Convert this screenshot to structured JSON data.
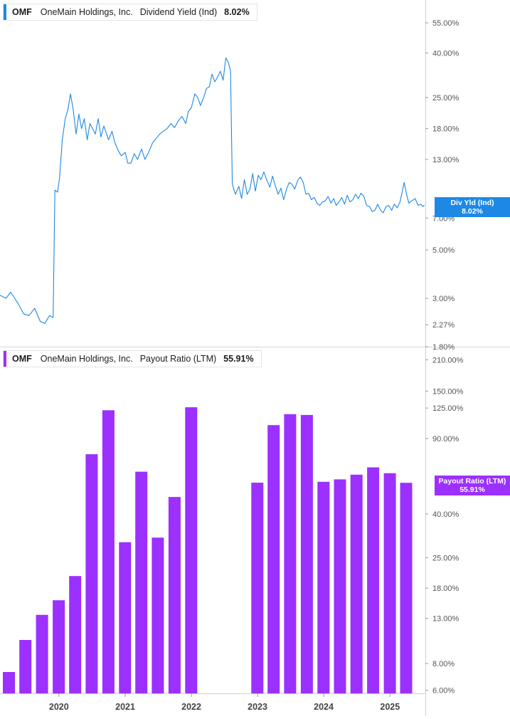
{
  "colors": {
    "yield_line": "#1e88e5",
    "payout_bar": "#9b30ff",
    "grid": "#e6e6e6",
    "axis_text": "#555555"
  },
  "top_panel": {
    "legend": {
      "ticker": "OMF",
      "company": "OneMain Holdings, Inc.",
      "metric": "Dividend Yield (Ind)",
      "value": "8.02%"
    },
    "tag": {
      "label": "Div Yld (Ind)",
      "value": "8.02%"
    },
    "y_ticks": [
      "55.00%",
      "40.00%",
      "25.00%",
      "18.00%",
      "13.00%",
      "7.00%",
      "5.00%",
      "3.00%",
      "2.27%",
      "1.80%"
    ]
  },
  "bottom_panel": {
    "legend": {
      "ticker": "OMF",
      "company": "OneMain Holdings, Inc.",
      "metric": "Payout Ratio (LTM)",
      "value": "55.91%"
    },
    "tag": {
      "label": "Payout Ratio (LTM)",
      "value": "55.91%"
    },
    "y_ticks": [
      "210.00%",
      "150.00%",
      "125.00%",
      "90.00%",
      "40.00%",
      "25.00%",
      "18.00%",
      "13.00%",
      "8.00%",
      "6.00%"
    ]
  },
  "x_axis": {
    "ticks": [
      "2020",
      "2021",
      "2022",
      "2023",
      "2024",
      "2025"
    ]
  },
  "chart_data": [
    {
      "type": "line",
      "title": "OMF OneMain Holdings, Inc. Dividend Yield (Ind)",
      "y_scale": "log",
      "ylim": [
        1.8,
        70
      ],
      "xlim": [
        "2019-02-10",
        "2025-07-15"
      ],
      "series": [
        {
          "name": "Dividend Yield (Ind)",
          "points": [
            [
              "2019-02-10",
              3.1
            ],
            [
              "2019-03-15",
              3.0
            ],
            [
              "2019-04-10",
              3.2
            ],
            [
              "2019-05-20",
              2.85
            ],
            [
              "2019-06-20",
              2.55
            ],
            [
              "2019-07-20",
              2.5
            ],
            [
              "2019-08-20",
              2.7
            ],
            [
              "2019-09-20",
              2.35
            ],
            [
              "2019-10-15",
              2.3
            ],
            [
              "2019-11-10",
              2.5
            ],
            [
              "2019-11-30",
              2.45
            ],
            [
              "2019-12-10",
              9.4
            ],
            [
              "2019-12-25",
              9.2
            ],
            [
              "2020-01-05",
              10.8
            ],
            [
              "2020-01-20",
              16.0
            ],
            [
              "2020-02-05",
              20.0
            ],
            [
              "2020-02-20",
              22.0
            ],
            [
              "2020-03-05",
              26.0
            ],
            [
              "2020-03-20",
              22.0
            ],
            [
              "2020-04-05",
              17.0
            ],
            [
              "2020-04-20",
              21.0
            ],
            [
              "2020-05-05",
              18.0
            ],
            [
              "2020-05-20",
              20.0
            ],
            [
              "2020-06-05",
              16.0
            ],
            [
              "2020-06-20",
              19.0
            ],
            [
              "2020-07-05",
              18.0
            ],
            [
              "2020-07-20",
              17.0
            ],
            [
              "2020-08-05",
              20.0
            ],
            [
              "2020-08-20",
              16.5
            ],
            [
              "2020-09-05",
              18.5
            ],
            [
              "2020-10-01",
              16.0
            ],
            [
              "2020-10-20",
              17.5
            ],
            [
              "2020-11-05",
              15.5
            ],
            [
              "2020-11-25",
              14.2
            ],
            [
              "2020-12-10",
              13.5
            ],
            [
              "2021-01-01",
              14.0
            ],
            [
              "2021-01-15",
              12.5
            ],
            [
              "2021-02-01",
              12.5
            ],
            [
              "2021-02-20",
              13.8
            ],
            [
              "2021-03-10",
              13.0
            ],
            [
              "2021-04-01",
              14.5
            ],
            [
              "2021-04-20",
              13.0
            ],
            [
              "2021-05-10",
              14.0
            ],
            [
              "2021-06-01",
              15.5
            ],
            [
              "2021-06-20",
              16.2
            ],
            [
              "2021-07-10",
              17.0
            ],
            [
              "2021-07-30",
              17.5
            ],
            [
              "2021-08-20",
              18.0
            ],
            [
              "2021-09-10",
              19.0
            ],
            [
              "2021-09-30",
              18.2
            ],
            [
              "2021-10-20",
              19.5
            ],
            [
              "2021-11-10",
              20.5
            ],
            [
              "2021-12-01",
              19.0
            ],
            [
              "2021-12-15",
              21.5
            ],
            [
              "2022-01-01",
              22.5
            ],
            [
              "2022-01-20",
              26.0
            ],
            [
              "2022-02-05",
              25.0
            ],
            [
              "2022-02-20",
              23.0
            ],
            [
              "2022-03-10",
              25.0
            ],
            [
              "2022-03-25",
              27.5
            ],
            [
              "2022-04-10",
              28.0
            ],
            [
              "2022-04-25",
              32.0
            ],
            [
              "2022-05-10",
              29.5
            ],
            [
              "2022-05-25",
              31.0
            ],
            [
              "2022-06-10",
              33.0
            ],
            [
              "2022-06-25",
              30.0
            ],
            [
              "2022-07-10",
              38.0
            ],
            [
              "2022-07-25",
              36.0
            ],
            [
              "2022-08-05",
              33.0
            ],
            [
              "2022-08-15",
              10.0
            ],
            [
              "2022-09-01",
              9.0
            ],
            [
              "2022-09-20",
              9.8
            ],
            [
              "2022-10-05",
              8.6
            ],
            [
              "2022-10-20",
              10.5
            ],
            [
              "2022-11-05",
              9.0
            ],
            [
              "2022-11-20",
              9.5
            ],
            [
              "2022-12-05",
              11.2
            ],
            [
              "2022-12-20",
              9.3
            ],
            [
              "2023-01-05",
              11.0
            ],
            [
              "2023-01-20",
              10.5
            ],
            [
              "2023-02-05",
              11.4
            ],
            [
              "2023-02-20",
              10.5
            ],
            [
              "2023-03-10",
              9.7
            ],
            [
              "2023-03-25",
              10.9
            ],
            [
              "2023-04-10",
              9.8
            ],
            [
              "2023-04-25",
              9.0
            ],
            [
              "2023-05-10",
              9.6
            ],
            [
              "2023-05-25",
              8.5
            ],
            [
              "2023-06-10",
              9.5
            ],
            [
              "2023-06-25",
              10.2
            ],
            [
              "2023-07-10",
              10.0
            ],
            [
              "2023-07-25",
              9.5
            ],
            [
              "2023-08-10",
              10.4
            ],
            [
              "2023-08-25",
              10.8
            ],
            [
              "2023-09-10",
              10.2
            ],
            [
              "2023-09-25",
              9.0
            ],
            [
              "2023-10-10",
              9.1
            ],
            [
              "2023-10-25",
              8.5
            ],
            [
              "2023-11-10",
              8.7
            ],
            [
              "2023-11-25",
              8.2
            ],
            [
              "2023-12-10",
              8.0
            ],
            [
              "2023-12-25",
              8.3
            ],
            [
              "2024-01-10",
              8.4
            ],
            [
              "2024-01-25",
              8.8
            ],
            [
              "2024-02-10",
              8.2
            ],
            [
              "2024-02-25",
              8.6
            ],
            [
              "2024-03-10",
              8.0
            ],
            [
              "2024-03-25",
              8.3
            ],
            [
              "2024-04-10",
              8.7
            ],
            [
              "2024-04-25",
              8.1
            ],
            [
              "2024-05-10",
              8.9
            ],
            [
              "2024-05-25",
              8.3
            ],
            [
              "2024-06-10",
              8.5
            ],
            [
              "2024-06-25",
              9.0
            ],
            [
              "2024-07-10",
              8.6
            ],
            [
              "2024-07-25",
              9.1
            ],
            [
              "2024-08-10",
              8.8
            ],
            [
              "2024-08-25",
              8.0
            ],
            [
              "2024-09-10",
              7.9
            ],
            [
              "2024-09-25",
              7.5
            ],
            [
              "2024-10-10",
              7.6
            ],
            [
              "2024-10-25",
              8.1
            ],
            [
              "2024-11-10",
              7.6
            ],
            [
              "2024-11-25",
              7.4
            ],
            [
              "2024-12-10",
              7.9
            ],
            [
              "2024-12-25",
              8.0
            ],
            [
              "2025-01-10",
              7.6
            ],
            [
              "2025-01-25",
              8.1
            ],
            [
              "2025-02-10",
              7.8
            ],
            [
              "2025-02-25",
              8.3
            ],
            [
              "2025-03-10",
              9.3
            ],
            [
              "2025-03-20",
              10.2
            ],
            [
              "2025-04-01",
              9.1
            ],
            [
              "2025-04-15",
              8.2
            ],
            [
              "2025-05-01",
              8.4
            ],
            [
              "2025-05-20",
              8.6
            ],
            [
              "2025-06-05",
              8.0
            ],
            [
              "2025-06-20",
              8.1
            ],
            [
              "2025-07-01",
              7.9
            ],
            [
              "2025-07-10",
              8.02
            ]
          ]
        }
      ]
    },
    {
      "type": "bar",
      "title": "OMF OneMain Holdings, Inc. Payout Ratio (LTM)",
      "y_scale": "log",
      "ylim": [
        5.8,
        240
      ],
      "xlim": [
        "2019-02-10",
        "2025-07-15"
      ],
      "series": [
        {
          "name": "Payout Ratio (LTM)",
          "points": [
            [
              "2019-03-31",
              7.3
            ],
            [
              "2019-06-30",
              10.3
            ],
            [
              "2019-09-30",
              13.5
            ],
            [
              "2019-12-31",
              15.8
            ],
            [
              "2020-03-31",
              20.5
            ],
            [
              "2020-06-30",
              76.0
            ],
            [
              "2020-09-30",
              122.0
            ],
            [
              "2020-12-31",
              29.5
            ],
            [
              "2021-03-31",
              63.0
            ],
            [
              "2021-06-30",
              31.0
            ],
            [
              "2021-09-30",
              48.0
            ],
            [
              "2021-12-31",
              126.0
            ],
            [
              "2022-03-31",
              null
            ],
            [
              "2022-06-30",
              null
            ],
            [
              "2022-09-30",
              null
            ],
            [
              "2022-12-31",
              56.0
            ],
            [
              "2023-03-31",
              104.0
            ],
            [
              "2023-06-30",
              117.0
            ],
            [
              "2023-09-30",
              116.0
            ],
            [
              "2023-12-31",
              56.5
            ],
            [
              "2024-03-31",
              58.0
            ],
            [
              "2024-06-30",
              61.0
            ],
            [
              "2024-09-30",
              66.0
            ],
            [
              "2024-12-31",
              62.0
            ],
            [
              "2025-03-31",
              55.91
            ]
          ]
        }
      ]
    }
  ]
}
